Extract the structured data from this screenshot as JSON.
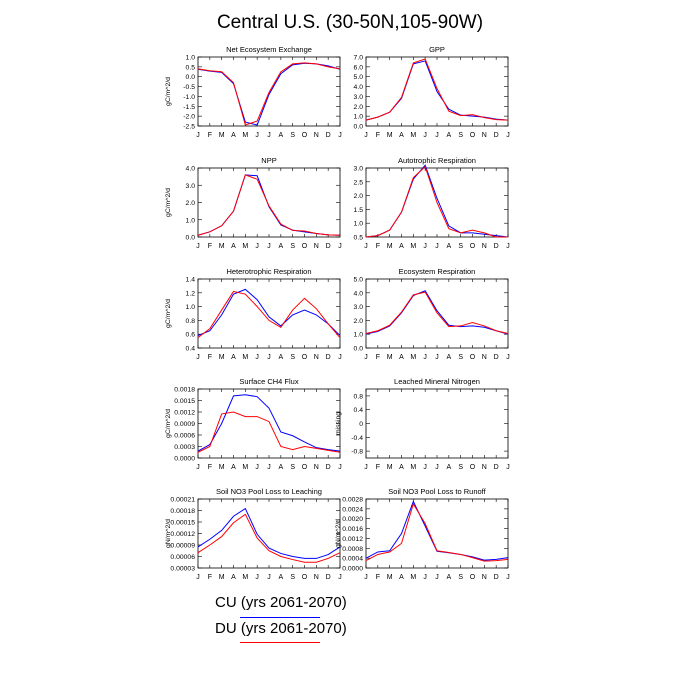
{
  "title": "Central U.S. (30-50N,105-90W)",
  "months": [
    "J",
    "F",
    "M",
    "A",
    "M",
    "J",
    "J",
    "A",
    "S",
    "O",
    "N",
    "D",
    "J"
  ],
  "legend": [
    {
      "label": "CU (yrs 2061-2070)",
      "color": "#0000ff"
    },
    {
      "label": "DU (yrs 2061-2070)",
      "color": "#ff0000"
    }
  ],
  "chart_data": [
    {
      "type": "line",
      "title": "Net Ecosystem Exchange",
      "ylabel": "gC/m^2/d",
      "ylim": [
        -2.5,
        1.0
      ],
      "yticks": [
        -2.5,
        -2.0,
        -1.5,
        -1.0,
        -0.5,
        0.0,
        0.5,
        1.0
      ],
      "ytick_labels": [
        "-2.5",
        "-2.0",
        "-1.5",
        "-1.0",
        "-0.5",
        "0.0",
        "0.5",
        "1.0"
      ],
      "series": [
        {
          "name": "CU",
          "color": "#0000ff",
          "values": [
            0.38,
            0.28,
            0.22,
            -0.35,
            -2.3,
            -2.45,
            -0.9,
            0.15,
            0.6,
            0.68,
            0.65,
            0.55,
            0.38
          ]
        },
        {
          "name": "DU",
          "color": "#ff0000",
          "values": [
            0.4,
            0.3,
            0.25,
            -0.3,
            -2.45,
            -2.25,
            -0.8,
            0.25,
            0.65,
            0.7,
            0.65,
            0.5,
            0.4
          ]
        }
      ]
    },
    {
      "type": "line",
      "title": "GPP",
      "ylabel": "",
      "ylim": [
        0.0,
        7.0
      ],
      "yticks": [
        0,
        1,
        2,
        3,
        4,
        5,
        6,
        7
      ],
      "ytick_labels": [
        "0.0",
        "1.0",
        "2.0",
        "3.0",
        "4.0",
        "5.0",
        "6.0",
        "7.0"
      ],
      "series": [
        {
          "name": "CU",
          "color": "#0000ff",
          "values": [
            0.6,
            0.9,
            1.4,
            2.8,
            6.3,
            6.6,
            3.5,
            1.7,
            1.1,
            1.0,
            0.9,
            0.7,
            0.6
          ]
        },
        {
          "name": "DU",
          "color": "#ff0000",
          "values": [
            0.6,
            0.9,
            1.4,
            2.9,
            6.4,
            6.8,
            3.8,
            1.5,
            1.05,
            1.15,
            0.85,
            0.65,
            0.6
          ]
        }
      ]
    },
    {
      "type": "line",
      "title": "NPP",
      "ylabel": "gC/m^2/d",
      "ylim": [
        0.0,
        4.0
      ],
      "yticks": [
        0,
        1,
        2,
        3,
        4
      ],
      "ytick_labels": [
        "0.0",
        "1.0",
        "2.0",
        "3.0",
        "4.0"
      ],
      "series": [
        {
          "name": "CU",
          "color": "#0000ff",
          "values": [
            0.1,
            0.3,
            0.65,
            1.5,
            3.6,
            3.55,
            1.75,
            0.7,
            0.4,
            0.3,
            0.2,
            0.12,
            0.1
          ]
        },
        {
          "name": "DU",
          "color": "#ff0000",
          "values": [
            0.1,
            0.3,
            0.65,
            1.5,
            3.6,
            3.35,
            1.8,
            0.75,
            0.38,
            0.35,
            0.2,
            0.12,
            0.1
          ]
        }
      ]
    },
    {
      "type": "line",
      "title": "Autotrophic Respiration",
      "ylabel": "",
      "ylim": [
        0.5,
        3.0
      ],
      "yticks": [
        0.5,
        1.0,
        1.5,
        2.0,
        2.5,
        3.0
      ],
      "ytick_labels": [
        "0.5",
        "1.0",
        "1.5",
        "2.0",
        "2.5",
        "3.0"
      ],
      "series": [
        {
          "name": "CU",
          "color": "#0000ff",
          "values": [
            0.5,
            0.55,
            0.75,
            1.4,
            2.6,
            3.1,
            1.9,
            0.9,
            0.65,
            0.65,
            0.6,
            0.55,
            0.5
          ]
        },
        {
          "name": "DU",
          "color": "#ff0000",
          "values": [
            0.5,
            0.55,
            0.75,
            1.4,
            2.65,
            3.05,
            1.75,
            0.8,
            0.65,
            0.75,
            0.65,
            0.5,
            0.5
          ]
        }
      ]
    },
    {
      "type": "line",
      "title": "Heterotrophic Respiration",
      "ylabel": "gC/m^2/d",
      "ylim": [
        0.4,
        1.4
      ],
      "yticks": [
        0.4,
        0.6,
        0.8,
        1.0,
        1.2,
        1.4
      ],
      "ytick_labels": [
        "0.4",
        "0.6",
        "0.8",
        "1.0",
        "1.2",
        "1.4"
      ],
      "series": [
        {
          "name": "CU",
          "color": "#0000ff",
          "values": [
            0.58,
            0.65,
            0.88,
            1.18,
            1.25,
            1.1,
            0.85,
            0.72,
            0.88,
            0.95,
            0.88,
            0.75,
            0.58
          ]
        },
        {
          "name": "DU",
          "color": "#ff0000",
          "values": [
            0.55,
            0.68,
            0.95,
            1.22,
            1.18,
            1.0,
            0.8,
            0.7,
            0.95,
            1.12,
            0.97,
            0.75,
            0.55
          ]
        }
      ]
    },
    {
      "type": "line",
      "title": "Ecosystem Respiration",
      "ylabel": "",
      "ylim": [
        0.0,
        5.0
      ],
      "yticks": [
        0,
        1,
        2,
        3,
        4,
        5
      ],
      "ytick_labels": [
        "0.0",
        "1.0",
        "2.0",
        "3.0",
        "4.0",
        "5.0"
      ],
      "series": [
        {
          "name": "CU",
          "color": "#0000ff",
          "values": [
            1.0,
            1.2,
            1.6,
            2.55,
            3.8,
            4.15,
            2.7,
            1.65,
            1.55,
            1.6,
            1.5,
            1.25,
            1.0
          ]
        },
        {
          "name": "DU",
          "color": "#ff0000",
          "values": [
            1.05,
            1.25,
            1.65,
            2.6,
            3.85,
            4.05,
            2.55,
            1.55,
            1.6,
            1.85,
            1.6,
            1.25,
            1.05
          ]
        }
      ]
    },
    {
      "type": "line",
      "title": "Surface CH4 Flux",
      "ylabel": "gC/m^2/d",
      "ylim": [
        0.0,
        0.0018
      ],
      "yticks": [
        0,
        0.0003,
        0.0006,
        0.0009,
        0.0012,
        0.0015,
        0.0018
      ],
      "ytick_labels": [
        "0.0000",
        "0.0003",
        "0.0006",
        "0.0009",
        "0.0012",
        "0.0015",
        "0.0018"
      ],
      "series": [
        {
          "name": "CU",
          "color": "#0000ff",
          "values": [
            0.00018,
            0.00035,
            0.0009,
            0.00162,
            0.00165,
            0.0016,
            0.0013,
            0.00068,
            0.00058,
            0.00042,
            0.00027,
            0.00022,
            0.00018
          ]
        },
        {
          "name": "DU",
          "color": "#ff0000",
          "values": [
            0.00015,
            0.0003,
            0.00115,
            0.0012,
            0.00108,
            0.00108,
            0.00095,
            0.0003,
            0.00022,
            0.0003,
            0.00025,
            0.0002,
            0.00015
          ]
        }
      ]
    },
    {
      "type": "line",
      "title": "Leached Mineral Nitrogen",
      "ylabel": "missing",
      "ylim": [
        -1.0,
        1.0
      ],
      "yticks": [
        -0.8,
        -0.4,
        0.0,
        0.4,
        0.8
      ],
      "ytick_labels": [
        "-0.8",
        "-0.4",
        "0",
        "0.4",
        "0.8"
      ],
      "series": []
    },
    {
      "type": "line",
      "title": "Soil NO3 Pool Loss to Leaching",
      "ylabel": "gN/m^2/d",
      "ylim": [
        3e-05,
        0.00021
      ],
      "yticks": [
        3e-05,
        6e-05,
        9e-05,
        0.00012,
        0.00015,
        0.00018,
        0.00021
      ],
      "ytick_labels": [
        "0.00003",
        "0.00006",
        "0.00009",
        "0.00012",
        "0.00015",
        "0.00018",
        "0.00021"
      ],
      "series": [
        {
          "name": "CU",
          "color": "#0000ff",
          "values": [
            8.5e-05,
            0.000105,
            0.000128,
            0.000165,
            0.000185,
            0.000118,
            8.2e-05,
            6.8e-05,
            6e-05,
            5.5e-05,
            5.5e-05,
            6.5e-05,
            8.5e-05
          ]
        },
        {
          "name": "DU",
          "color": "#ff0000",
          "values": [
            7e-05,
            9e-05,
            0.000112,
            0.000148,
            0.00017,
            0.000108,
            7.5e-05,
            6e-05,
            5.2e-05,
            4.5e-05,
            4.5e-05,
            5.5e-05,
            7e-05
          ]
        }
      ]
    },
    {
      "type": "line",
      "title": "Soil NO3 Pool Loss to Runoff",
      "ylabel": "gN/m^2/d",
      "ylim": [
        0.0,
        0.0028
      ],
      "yticks": [
        0,
        0.0004,
        0.0008,
        0.0012,
        0.0016,
        0.002,
        0.0024,
        0.0028
      ],
      "ytick_labels": [
        "0.0000",
        "0.0004",
        "0.0008",
        "0.0012",
        "0.0016",
        "0.0020",
        "0.0024",
        "0.0028"
      ],
      "series": [
        {
          "name": "CU",
          "color": "#0000ff",
          "values": [
            0.0004,
            0.00065,
            0.0007,
            0.0014,
            0.0027,
            0.0017,
            0.00068,
            0.00062,
            0.00055,
            0.00045,
            0.00032,
            0.00035,
            0.00042
          ]
        },
        {
          "name": "DU",
          "color": "#ff0000",
          "values": [
            0.0003,
            0.00055,
            0.00065,
            0.001,
            0.0026,
            0.0018,
            0.0007,
            0.00063,
            0.00055,
            0.00042,
            0.00028,
            0.0003,
            0.00035
          ]
        }
      ]
    }
  ]
}
